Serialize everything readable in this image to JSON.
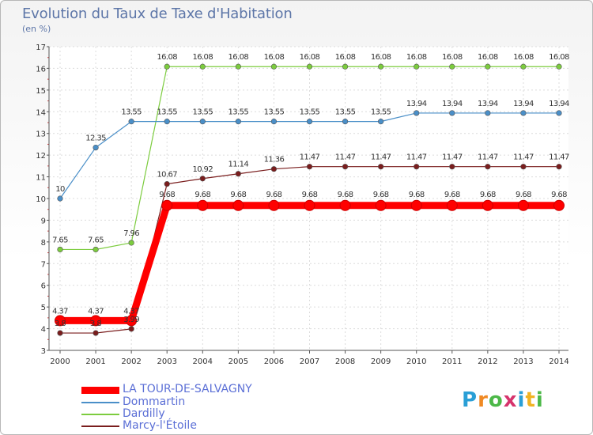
{
  "title": "Evolution du Taux de Taxe d'Habitation",
  "subtitle": "(en %)",
  "brand": {
    "letters": [
      "P",
      "r",
      "o",
      "x",
      "i",
      "t",
      "i"
    ],
    "colors": [
      "#2a9fd6",
      "#f08a24",
      "#4cb848",
      "#d6336c",
      "#2a9fd6",
      "#f0b323",
      "#4cb848"
    ]
  },
  "chart_data": {
    "type": "line",
    "title": "Evolution du Taux de Taxe d'Habitation",
    "ylabel": "(en %)",
    "xlabel": "",
    "ylim": [
      3,
      17
    ],
    "yticks": [
      "3",
      "4",
      "5",
      "6",
      "7",
      "8",
      "9",
      "10",
      "11",
      "12",
      "13",
      "14",
      "15",
      "16",
      "17"
    ],
    "x": [
      "2000",
      "2001",
      "2002",
      "2003",
      "2004",
      "2005",
      "2006",
      "2007",
      "2008",
      "2009",
      "2010",
      "2011",
      "2012",
      "2013",
      "2014"
    ],
    "series": [
      {
        "name": "LA TOUR-DE-SALVAGNY",
        "color": "#ff0000",
        "values": [
          4.37,
          4.37,
          4.37,
          9.68,
          9.68,
          9.68,
          9.68,
          9.68,
          9.68,
          9.68,
          9.68,
          9.68,
          9.68,
          9.68,
          9.68
        ],
        "labels": [
          "4.37",
          "4.37",
          "4.37",
          "9.68",
          "9.68",
          "9.68",
          "9.68",
          "9.68",
          "9.68",
          "9.68",
          "9.68",
          "9.68",
          "9.68",
          "9.68",
          "9.68"
        ]
      },
      {
        "name": "Dommartin",
        "color": "#4a8fc8",
        "values": [
          10,
          12.35,
          13.55,
          13.55,
          13.55,
          13.55,
          13.55,
          13.55,
          13.55,
          13.55,
          13.94,
          13.94,
          13.94,
          13.94,
          13.94
        ],
        "labels": [
          "10",
          "12.35",
          "13.55",
          "13.55",
          "13.55",
          "13.55",
          "13.55",
          "13.55",
          "13.55",
          "13.55",
          "13.94",
          "13.94",
          "13.94",
          "13.94",
          "13.94"
        ]
      },
      {
        "name": "Dardilly",
        "color": "#7ccc3e",
        "values": [
          7.65,
          7.65,
          7.96,
          16.08,
          16.08,
          16.08,
          16.08,
          16.08,
          16.08,
          16.08,
          16.08,
          16.08,
          16.08,
          16.08,
          16.08
        ],
        "labels": [
          "7.65",
          "7.65",
          "7.96",
          "16.08",
          "16.08",
          "16.08",
          "16.08",
          "16.08",
          "16.08",
          "16.08",
          "16.08",
          "16.08",
          "16.08",
          "16.08",
          "16.08"
        ]
      },
      {
        "name": "Marcy-l'Étoile",
        "color": "#7a1d1d",
        "values": [
          3.8,
          3.8,
          3.99,
          10.67,
          10.92,
          11.14,
          11.36,
          11.47,
          11.47,
          11.47,
          11.47,
          11.47,
          11.47,
          11.47,
          11.47
        ],
        "labels": [
          "3.8",
          "3.8",
          "3.99",
          "10.67",
          "10.92",
          "11.14",
          "11.36",
          "11.47",
          "11.47",
          "11.47",
          "11.47",
          "11.47",
          "11.47",
          "11.47",
          "11.47"
        ]
      }
    ]
  }
}
